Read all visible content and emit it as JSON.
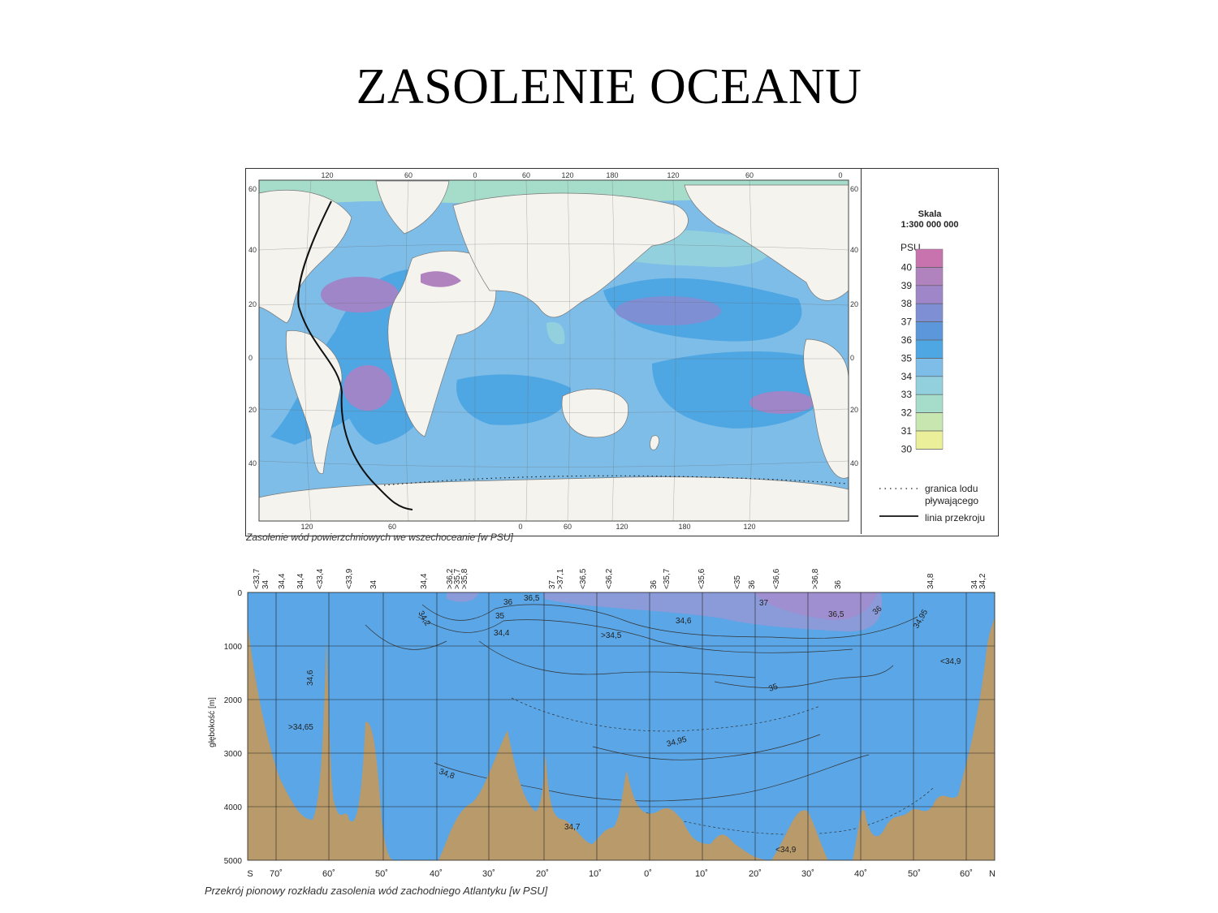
{
  "title": "ZASOLENIE OCEANU",
  "map": {
    "top_lon_labels": [
      "120",
      "60",
      "0",
      "60",
      "120",
      "180",
      "120",
      "60",
      "0"
    ],
    "bottom_lon_labels": [
      "120",
      "60",
      "0",
      "60",
      "120",
      "180",
      "120",
      "60"
    ],
    "left_lat_labels": [
      "60",
      "40",
      "20",
      "0",
      "20",
      "40"
    ],
    "right_lat_labels": [
      "60",
      "40",
      "20",
      "0",
      "20",
      "40"
    ],
    "caption": "Zasolenie wód powierzchniowych we wszechoceanie [w PSU]",
    "legend": {
      "scale_title": "Skala",
      "scale_value": "1:300 000 000",
      "unit": "PSU",
      "levels": [
        "40",
        "39",
        "38",
        "37",
        "36",
        "35",
        "34",
        "33",
        "32",
        "31",
        "30"
      ],
      "colors": [
        "#c973ae",
        "#b083bf",
        "#9e86c9",
        "#7f8fd4",
        "#5c97dc",
        "#4ea6e2",
        "#7dbde8",
        "#93d0de",
        "#a6dcca",
        "#c8e6b0",
        "#ecef9a"
      ],
      "ice_limit_label": "granica lodu pływającego",
      "section_line_label": "linia przekroju"
    },
    "colors": {
      "land": "#f4f3ee",
      "ocean_base": "#7dbde8",
      "ocean_high": "#4ea6e2",
      "ocean_very_high": "#9e86c9",
      "mediterranean": "#b083bf",
      "low_salinity": "#93d0de",
      "coast_low": "#c8e6b0"
    }
  },
  "section": {
    "top_labels": [
      "<33,7",
      "34",
      "34,4",
      "34,4",
      "<33,4",
      "<33,9",
      "34",
      "34,4",
      ">36,2",
      ">35,7",
      ">35,8",
      "37",
      ">37,1",
      "<36,5",
      "<36,2",
      "36",
      "<35,7",
      "<35,6",
      "<35",
      "36",
      "<36,6",
      ">36,8",
      "36",
      "34,8",
      "34",
      "34,2"
    ],
    "depth_ticks": [
      "0",
      "1000",
      "2000",
      "3000",
      "4000",
      "5000"
    ],
    "ylabel": "głębokość [m]",
    "x_labels": [
      "S",
      "70˚",
      "60˚",
      "50˚",
      "40˚",
      "30˚",
      "20˚",
      "10˚",
      "0˚",
      "10˚",
      "20˚",
      "30˚",
      "40˚",
      "50˚",
      "60˚",
      "N"
    ],
    "isoline_labels": [
      "36",
      "36,5",
      "35",
      "34,2",
      "34,4",
      ">34,5",
      "34,6",
      "37",
      "36,5",
      "36",
      "34,95",
      "<34,9",
      "34,6",
      ">34,65",
      "35",
      "34,95",
      "34,8",
      "34,7",
      "<34,9"
    ],
    "caption": "Przekrój pionowy rozkładu zasolenia wód zachodniego Atlantyku [w PSU]",
    "colors": {
      "water": "#5aa6e6",
      "seabed": "#b99a6b",
      "salty": "#9f8fd0",
      "salty2": "#8b9ad8"
    }
  }
}
